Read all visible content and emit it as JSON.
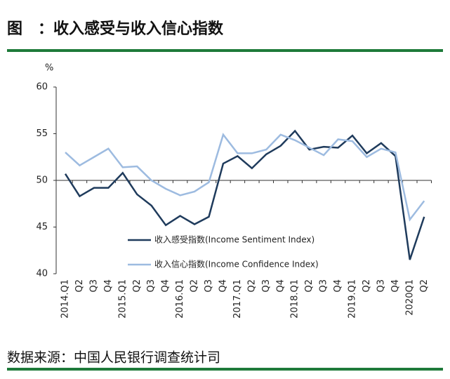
{
  "chart_data": {
    "type": "line",
    "title": "图　：收入感受与收入信心指数",
    "y_label": "%",
    "source": "数据来源：中国人民银行调查统计司",
    "categories": [
      "2014.Q1",
      "Q2",
      "Q3",
      "Q4",
      "2015.Q1",
      "Q2",
      "Q3",
      "Q4",
      "2016.Q1",
      "Q2",
      "Q3",
      "Q4",
      "2017.Q1",
      "Q2",
      "Q3",
      "Q4",
      "2018.Q1",
      "Q2",
      "Q3",
      "Q4",
      "2019.Q1",
      "Q2",
      "Q3",
      "Q4",
      "2020Q1",
      "Q2"
    ],
    "series": [
      {
        "name": "收入感受指数(Income Sentiment Index)",
        "color": "#1f3b5c",
        "values": [
          50.7,
          48.3,
          49.2,
          49.2,
          50.8,
          48.5,
          47.3,
          45.2,
          46.2,
          45.3,
          46.1,
          51.8,
          52.6,
          51.3,
          52.8,
          53.7,
          55.3,
          53.3,
          53.6,
          53.5,
          54.8,
          52.9,
          54.0,
          52.6,
          41.5,
          46.1
        ]
      },
      {
        "name": "收入信心指数(Income Confidence Index)",
        "color": "#9dbbe0",
        "values": [
          53.0,
          51.6,
          52.5,
          53.4,
          51.4,
          51.5,
          50.0,
          49.1,
          48.4,
          48.8,
          49.8,
          54.9,
          52.9,
          52.9,
          53.3,
          54.9,
          54.3,
          53.5,
          52.7,
          54.4,
          54.2,
          52.5,
          53.4,
          53.0,
          45.8,
          47.8
        ]
      }
    ],
    "ylim": [
      40,
      60
    ],
    "yticks": [
      40,
      45,
      50,
      55,
      60
    ],
    "x_axis_at": 50,
    "grid": false
  }
}
